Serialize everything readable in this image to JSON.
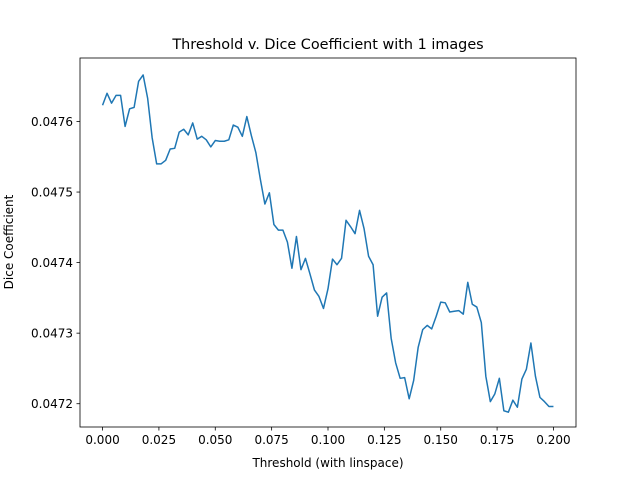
{
  "chart_data": {
    "type": "line",
    "title": "Threshold v. Dice Coefficient with 1 images",
    "xlabel": "Threshold (with linspace)",
    "ylabel": "Dice Coefficient",
    "xlim": [
      -0.01,
      0.21
    ],
    "ylim": [
      0.047167,
      0.04769
    ],
    "xticks": [
      0.0,
      0.025,
      0.05,
      0.075,
      0.1,
      0.125,
      0.15,
      0.175,
      0.2
    ],
    "xtick_labels": [
      "0.000",
      "0.025",
      "0.050",
      "0.075",
      "0.100",
      "0.125",
      "0.150",
      "0.175",
      "0.200"
    ],
    "yticks": [
      0.0472,
      0.0473,
      0.0474,
      0.0475,
      0.0476
    ],
    "ytick_labels": [
      "0.0472",
      "0.0473",
      "0.0474",
      "0.0475",
      "0.0476"
    ],
    "grid": false,
    "series": [
      {
        "color": "#1f77b4",
        "x": [
          0.0,
          0.002,
          0.004,
          0.006,
          0.008,
          0.01,
          0.012,
          0.014,
          0.016,
          0.018,
          0.02,
          0.022,
          0.024,
          0.026,
          0.028,
          0.03,
          0.032,
          0.034,
          0.036,
          0.038,
          0.04,
          0.042,
          0.044,
          0.046,
          0.048,
          0.05,
          0.052,
          0.054,
          0.056,
          0.058,
          0.06,
          0.062,
          0.064,
          0.066,
          0.068,
          0.07,
          0.072,
          0.074,
          0.076,
          0.078,
          0.08,
          0.082,
          0.084,
          0.086,
          0.088,
          0.09,
          0.092,
          0.094,
          0.096,
          0.098,
          0.1,
          0.102,
          0.104,
          0.106,
          0.108,
          0.11,
          0.112,
          0.114,
          0.116,
          0.118,
          0.12,
          0.122,
          0.124,
          0.126,
          0.128,
          0.13,
          0.132,
          0.134,
          0.136,
          0.138,
          0.14,
          0.142,
          0.144,
          0.146,
          0.148,
          0.15,
          0.152,
          0.154,
          0.156,
          0.158,
          0.16,
          0.162,
          0.164,
          0.166,
          0.168,
          0.17,
          0.172,
          0.174,
          0.176,
          0.178,
          0.18,
          0.182,
          0.184,
          0.186,
          0.188,
          0.19,
          0.192,
          0.194,
          0.196,
          0.198,
          0.2
        ],
        "y": [
          0.047623,
          0.04764,
          0.047626,
          0.047637,
          0.047637,
          0.047593,
          0.047618,
          0.04762,
          0.047657,
          0.047666,
          0.047633,
          0.047577,
          0.04754,
          0.04754,
          0.047545,
          0.047561,
          0.047562,
          0.047585,
          0.047589,
          0.047581,
          0.047598,
          0.047575,
          0.047579,
          0.047574,
          0.047564,
          0.047573,
          0.047572,
          0.047572,
          0.047574,
          0.047595,
          0.047592,
          0.047579,
          0.047607,
          0.04758,
          0.047556,
          0.047518,
          0.047483,
          0.047499,
          0.047454,
          0.047446,
          0.047446,
          0.047429,
          0.047392,
          0.047437,
          0.04739,
          0.047406,
          0.047384,
          0.047361,
          0.047352,
          0.047335,
          0.047363,
          0.047405,
          0.047397,
          0.047406,
          0.04746,
          0.047451,
          0.047441,
          0.047474,
          0.047448,
          0.047409,
          0.047397,
          0.047324,
          0.047351,
          0.047357,
          0.047293,
          0.047258,
          0.047236,
          0.047237,
          0.047207,
          0.047233,
          0.04728,
          0.047305,
          0.047311,
          0.047306,
          0.047324,
          0.047344,
          0.047343,
          0.04733,
          0.047331,
          0.047332,
          0.047327,
          0.047372,
          0.047341,
          0.047337,
          0.047315,
          0.047239,
          0.047203,
          0.047214,
          0.047236,
          0.04719,
          0.047188,
          0.047205,
          0.047195,
          0.047235,
          0.047249,
          0.047286,
          0.047239,
          0.047209,
          0.047203,
          0.047196,
          0.047196
        ]
      }
    ]
  }
}
